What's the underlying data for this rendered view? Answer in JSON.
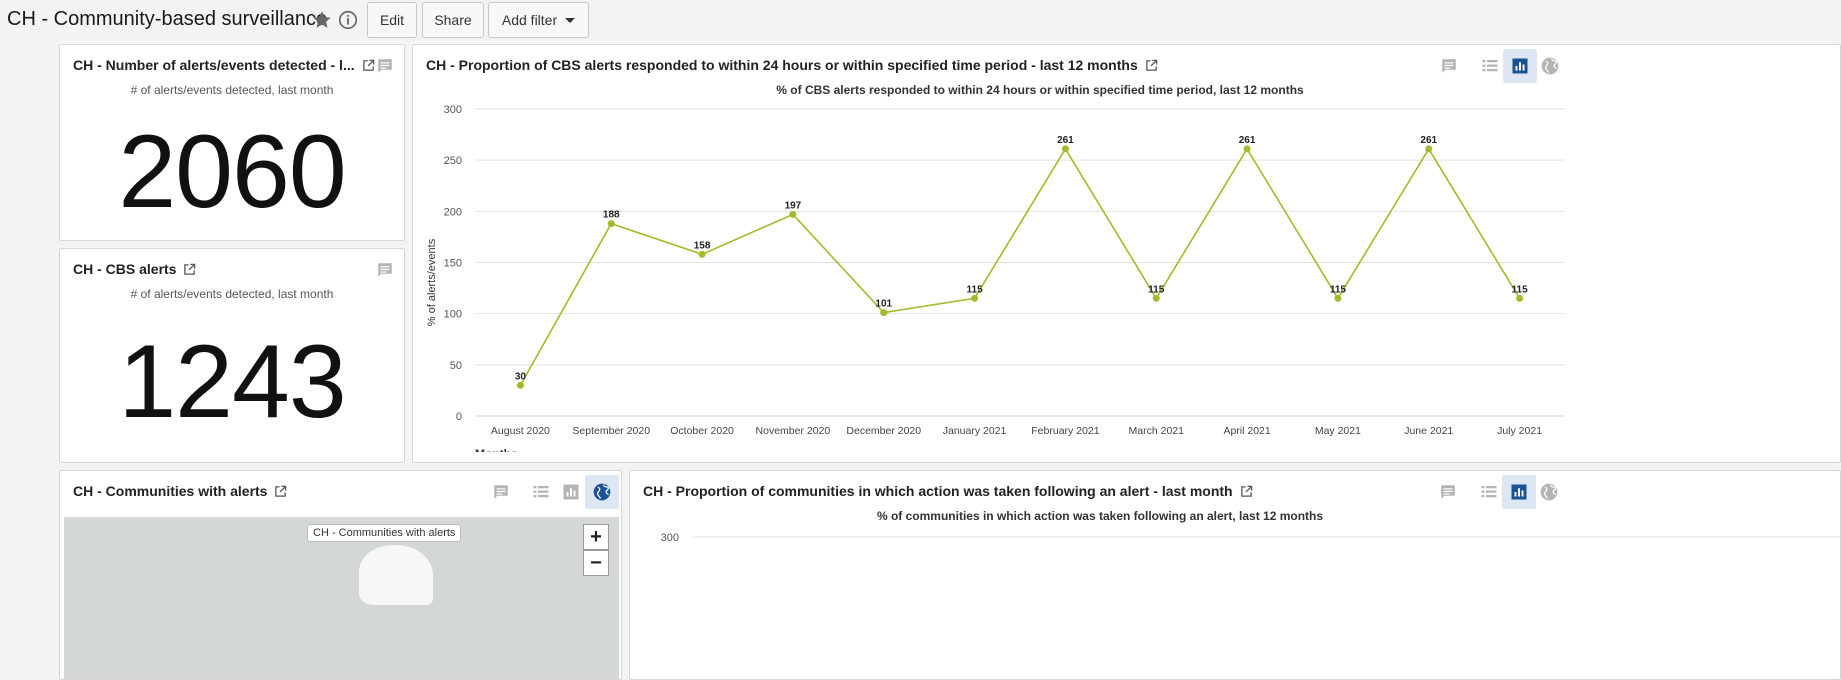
{
  "header": {
    "title": "CH - Community-based surveillance",
    "edit_label": "Edit",
    "share_label": "Share",
    "add_filter_label": "Add filter"
  },
  "panels": {
    "alerts_detected": {
      "title": "CH - Number of alerts/events detected - l...",
      "subtitle": "# of alerts/events detected, last month",
      "value": "2060"
    },
    "cbs_alerts": {
      "title": "CH - CBS alerts",
      "subtitle": "# of alerts/events detected, last month",
      "value": "1243"
    },
    "proportion_responded": {
      "title": "CH - Proportion of CBS alerts responded to within 24 hours or within specified time period - last 12 months"
    },
    "communities_with_alerts": {
      "title": "CH - Communities with alerts",
      "map_label": "CH - Communities with alerts",
      "zoom_in": "+",
      "zoom_out": "−"
    },
    "proportion_communities": {
      "title": "CH - Proportion of communities in which action was taken following an alert - last month"
    }
  },
  "chart_data": [
    {
      "type": "line",
      "title": "% of CBS alerts responded to within 24 hours or within specified time period, last 12 months",
      "xlabel": "Months",
      "ylabel": "% of alerts/events",
      "categories": [
        "August 2020",
        "September 2020",
        "October 2020",
        "November 2020",
        "December 2020",
        "January 2021",
        "February 2021",
        "March 2021",
        "April 2021",
        "May 2021",
        "June 2021",
        "July 2021"
      ],
      "series": [
        {
          "values": [
            30,
            188,
            158,
            197,
            101,
            115,
            261,
            115,
            261,
            115,
            261,
            115
          ],
          "color": "#a0bc2a"
        }
      ],
      "yticks": [
        "0",
        "50",
        "100",
        "150",
        "200",
        "250",
        "300"
      ],
      "ylim": [
        0,
        300
      ],
      "grid": true,
      "data_labels": true
    },
    {
      "type": "line",
      "title": "% of communities in which action was taken following an alert, last 12 months",
      "yticks": [
        "300"
      ],
      "ylim": [
        0,
        300
      ],
      "grid": true
    }
  ],
  "colors": {
    "accent": "#1c5193",
    "line": "#a0bc2a",
    "active_tool_bg": "#dde7f3",
    "icon_gray": "#b4b4b4"
  },
  "icons": [
    "star-icon",
    "info-icon",
    "caret-down-icon",
    "comment-icon",
    "table-icon",
    "chart-icon",
    "globe-icon",
    "external-link-icon"
  ]
}
